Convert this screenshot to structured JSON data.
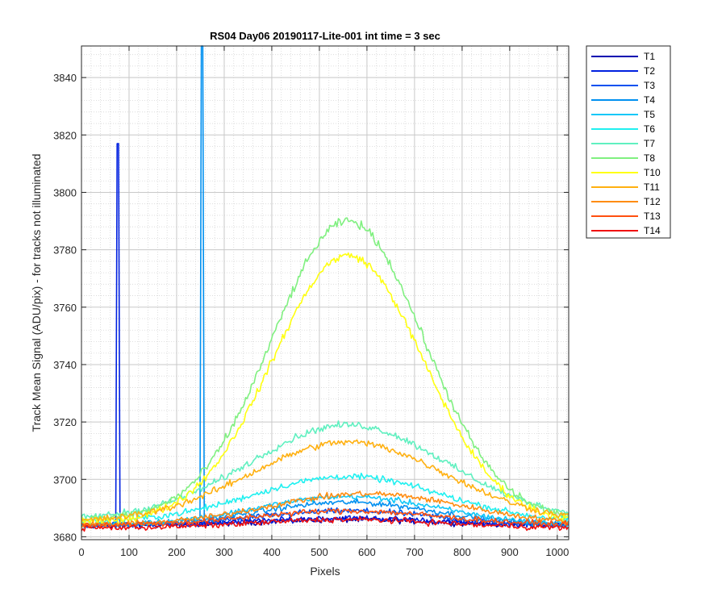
{
  "chart_data": {
    "type": "line",
    "title": "RS04 Day06 20190117-Lite-001 int time = 3 sec",
    "xlabel": "Pixels",
    "ylabel": "Track Mean Signal (ADU/pix) - for tracks not illuminated",
    "xlim": [
      0,
      1024
    ],
    "ylim": [
      3679,
      3851
    ],
    "xticks": [
      0,
      100,
      200,
      300,
      400,
      500,
      600,
      700,
      800,
      900,
      1000
    ],
    "yticks": [
      3680,
      3700,
      3720,
      3740,
      3760,
      3780,
      3800,
      3820,
      3840
    ],
    "grid": true,
    "minor_grid": true,
    "legend_position": "outside-right",
    "series": [
      {
        "name": "T1",
        "color": "#0000b0",
        "base": 3684,
        "peak": 2,
        "center": 560,
        "width": 260,
        "noise": 1.5
      },
      {
        "name": "T2",
        "color": "#0020e0",
        "base": 3684,
        "peak": 2.5,
        "center": 560,
        "width": 260,
        "noise": 1.5,
        "spikes": [
          {
            "x": 77,
            "y": 3817
          }
        ]
      },
      {
        "name": "T3",
        "color": "#0050f0",
        "base": 3684,
        "peak": 5,
        "center": 560,
        "width": 260,
        "noise": 1.5
      },
      {
        "name": "T4",
        "color": "#0090f0",
        "base": 3684,
        "peak": 8,
        "center": 560,
        "width": 260,
        "noise": 1.5,
        "spikes": [
          {
            "x": 254,
            "y": 3851
          }
        ]
      },
      {
        "name": "T5",
        "color": "#10c8f8",
        "base": 3684,
        "peak": 10,
        "center": 560,
        "width": 270,
        "noise": 1.5
      },
      {
        "name": "T6",
        "color": "#20f0f0",
        "base": 3685,
        "peak": 16,
        "center": 560,
        "width": 280,
        "noise": 1.6
      },
      {
        "name": "T7",
        "color": "#60f0c0",
        "base": 3686,
        "peak": 33,
        "center": 560,
        "width": 290,
        "noise": 1.8
      },
      {
        "name": "T8",
        "color": "#80f080",
        "base": 3686,
        "peak": 104,
        "center": 560,
        "width": 225,
        "noise": 2.2
      },
      {
        "name": "T10",
        "color": "#ffff10",
        "base": 3685,
        "peak": 93,
        "center": 560,
        "width": 225,
        "noise": 2.0
      },
      {
        "name": "T11",
        "color": "#ffb010",
        "base": 3685,
        "peak": 28,
        "center": 560,
        "width": 290,
        "noise": 1.8
      },
      {
        "name": "T12",
        "color": "#ff8c10",
        "base": 3684,
        "peak": 11,
        "center": 600,
        "width": 290,
        "noise": 1.5
      },
      {
        "name": "T13",
        "color": "#ff5010",
        "base": 3684,
        "peak": 5,
        "center": 560,
        "width": 280,
        "noise": 1.5
      },
      {
        "name": "T14",
        "color": "#f01010",
        "base": 3683,
        "peak": 3,
        "center": 560,
        "width": 280,
        "noise": 1.5
      }
    ]
  }
}
